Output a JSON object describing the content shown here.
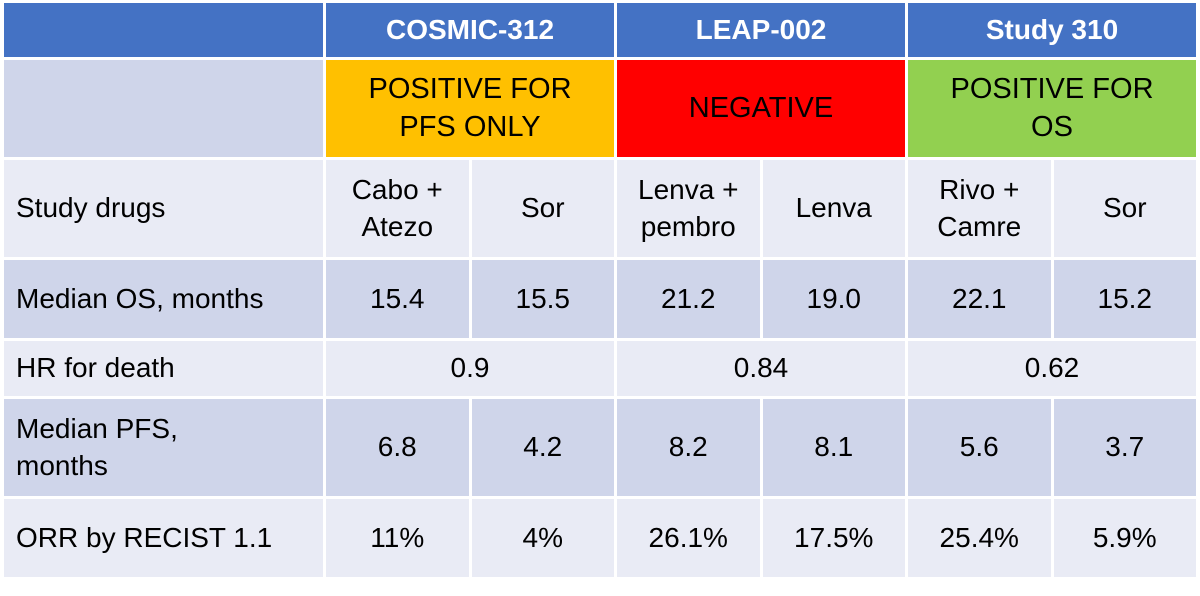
{
  "table": {
    "trials": [
      {
        "name": "COSMIC-312",
        "result": "POSITIVE FOR\nPFS ONLY",
        "result_color": "#ffc000"
      },
      {
        "name": "LEAP-002",
        "result": "NEGATIVE",
        "result_color": "#ff0000"
      },
      {
        "name": "Study 310",
        "result": "POSITIVE FOR\nOS",
        "result_color": "#92d050"
      }
    ],
    "rows": [
      {
        "label": "Study drugs",
        "cells": [
          "Cabo +\nAtezo",
          "Sor",
          "Lenva +\npembro",
          "Lenva",
          "Rivo +\nCamre",
          "Sor"
        ]
      },
      {
        "label": "Median OS, months",
        "cells": [
          "15.4",
          "15.5",
          "21.2",
          "19.0",
          "22.1",
          "15.2"
        ]
      },
      {
        "label": "HR for death",
        "cells": [
          "0.9",
          "0.84",
          "0.62"
        ]
      },
      {
        "label": "Median PFS,\nmonths",
        "cells": [
          "6.8",
          "4.2",
          "8.2",
          "8.1",
          "5.6",
          "3.7"
        ]
      },
      {
        "label": "ORR by RECIST 1.1",
        "cells": [
          "11%",
          "4%",
          "26.1%",
          "17.5%",
          "25.4%",
          "5.9%"
        ]
      }
    ]
  }
}
